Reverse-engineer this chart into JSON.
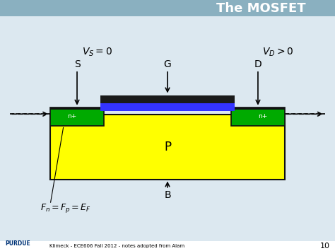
{
  "title": "The MOSFET",
  "bg_color": "#b8d4e0",
  "header_bg": "#8ab0c0",
  "body_bg": "#f0f0f0",
  "slide_bg": "#dce8f0",
  "yellow": "#ffff00",
  "green": "#00aa00",
  "blue": "#3333ff",
  "dark": "#111111",
  "white": "#ffffff",
  "label_S": "S",
  "label_G": "G",
  "label_D": "D",
  "label_B": "B",
  "label_P": "P",
  "label_n1": "n+",
  "label_n2": "n+",
  "vs_label": "$V_S = 0$",
  "vd_label": "$V_D > 0$",
  "eq_label": "$F_n = F_p = E_F$",
  "footer_text": "Klimeck - ECE606 Fall 2012 - notes adopted from Alam",
  "purdue_text": "PURDUE",
  "page_num": "10"
}
